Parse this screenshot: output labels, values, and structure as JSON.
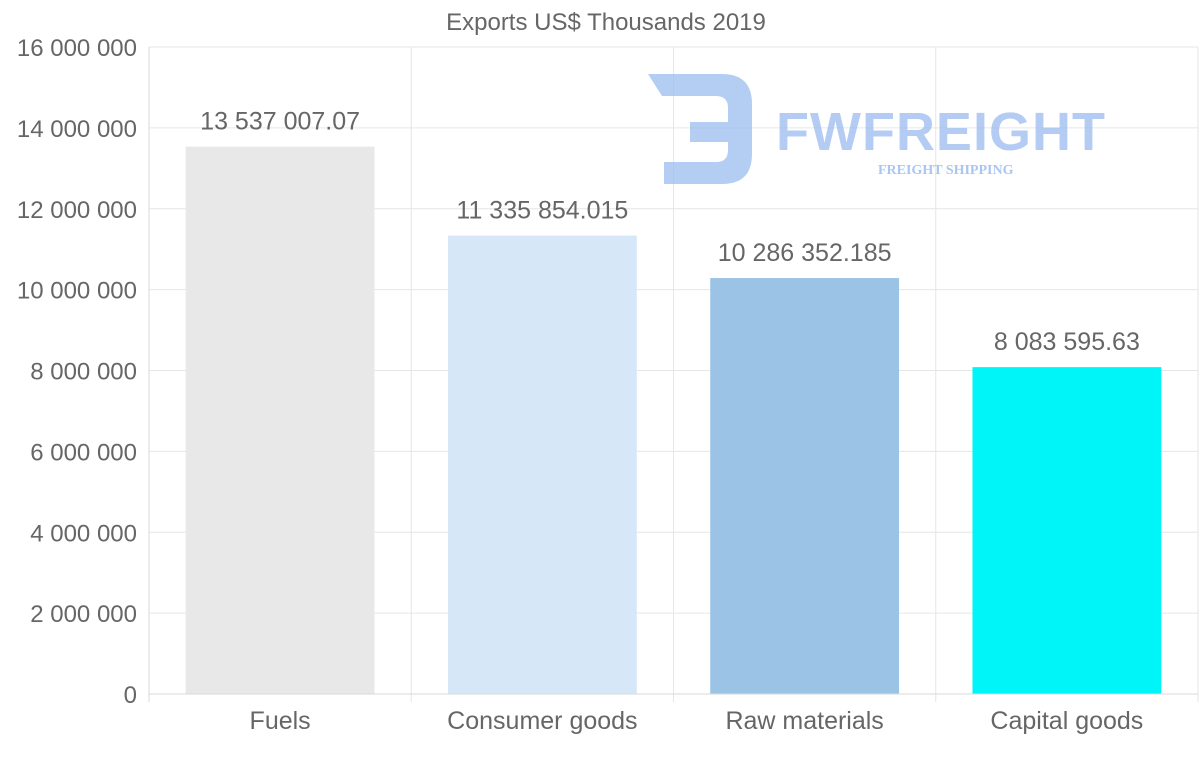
{
  "chart_data": {
    "type": "bar",
    "title": "Exports US$ Thousands 2019",
    "categories": [
      "Fuels",
      "Consumer goods",
      "Raw materials",
      "Capital goods"
    ],
    "values": [
      13537007.07,
      11335854.015,
      10286352.185,
      8083595.63
    ],
    "value_labels": [
      "13 537 007.07",
      "11 335 854.015",
      "10 286 352.185",
      "8 083 595.63"
    ],
    "colors": [
      "#e8e8e8",
      "#d6e7f8",
      "#9bc3e6",
      "#00f5f8"
    ],
    "ylim": [
      0,
      16000000
    ],
    "yticks": [
      0,
      2000000,
      4000000,
      6000000,
      8000000,
      10000000,
      12000000,
      14000000,
      16000000
    ],
    "ytick_labels": [
      "0",
      "2 000 000",
      "4 000 000",
      "6 000 000",
      "8 000 000",
      "10 000 000",
      "12 000 000",
      "14 000 000",
      "16 000 000"
    ],
    "xlabel": "",
    "ylabel": "",
    "grid": true
  },
  "watermark": {
    "brand": "FWFREIGHT",
    "tagline": "FREIGHT SHIPPING",
    "color": "#9bbcef"
  }
}
